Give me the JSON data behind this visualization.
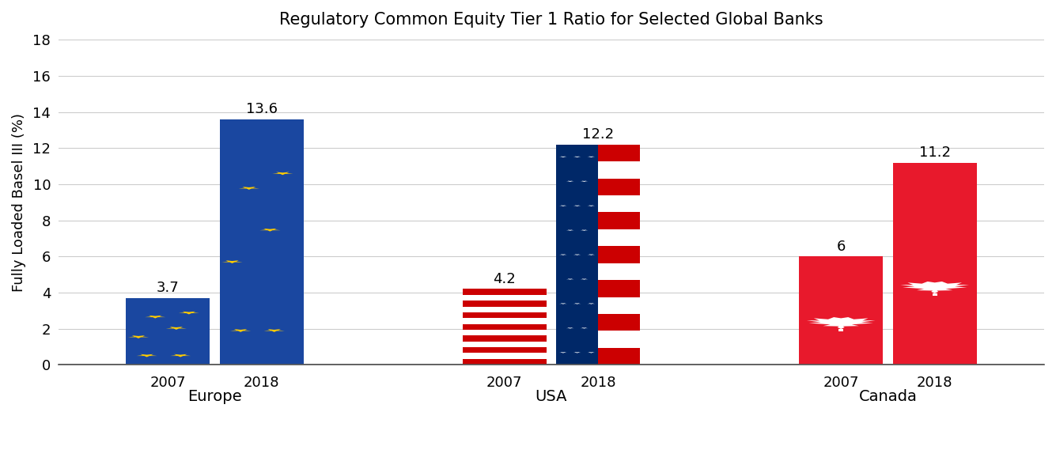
{
  "title": "Regulatory Common Equity Tier 1 Ratio for Selected Global Banks",
  "ylabel": "Fully Loaded Basel III (%)",
  "ylim": [
    0,
    18
  ],
  "yticks": [
    0,
    2,
    4,
    6,
    8,
    10,
    12,
    14,
    16,
    18
  ],
  "groups": [
    "Europe",
    "USA",
    "Canada"
  ],
  "years": [
    "2007",
    "2018"
  ],
  "values": {
    "Europe": [
      3.7,
      13.6
    ],
    "USA": [
      4.2,
      12.2
    ],
    "Canada": [
      6.0,
      11.2
    ]
  },
  "labels": {
    "Europe": [
      "3.7",
      "13.6"
    ],
    "USA": [
      "4.2",
      "12.2"
    ],
    "Canada": [
      "6",
      "11.2"
    ]
  },
  "bar_width": 0.7,
  "eu_blue": "#1A47A0",
  "eu_star_color": "#FFCC00",
  "usa_red": "#CC0001",
  "usa_blue": "#002868",
  "canada_red": "#E8192C",
  "background_color": "#FFFFFF",
  "label_fontsize": 13,
  "title_fontsize": 15,
  "ylabel_fontsize": 13,
  "value_fontsize": 13,
  "group_centers": [
    1.3,
    4.1,
    6.9
  ],
  "bar_gap": 0.08
}
